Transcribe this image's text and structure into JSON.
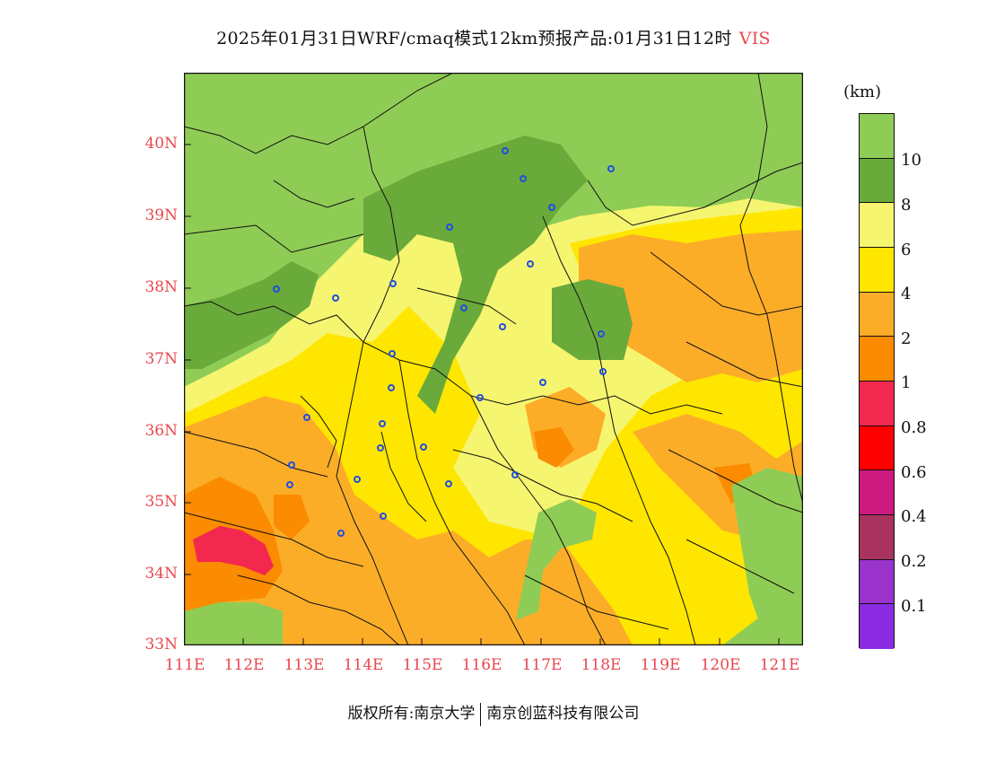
{
  "title": {
    "main": "2025年01月31日WRF/cmaq模式12km预报产品:01月31日12时",
    "variable": "VIS"
  },
  "map": {
    "lat_labels": [
      "40N",
      "39N",
      "38N",
      "37N",
      "36N",
      "35N",
      "34N",
      "33N"
    ],
    "lon_labels": [
      "111E",
      "112E",
      "113E",
      "114E",
      "115E",
      "116E",
      "117E",
      "118E",
      "119E",
      "120E",
      "121E"
    ],
    "colors": {
      "vis_gt10": "#8fcc55",
      "vis_8_10": "#6aaa3a",
      "vis_6_8": "#f5f570",
      "vis_4_6": "#ffe600",
      "vis_2_4": "#fcad28",
      "vis_1_2": "#fb8b00",
      "vis_0_8_1": "#f3284e"
    }
  },
  "legend": {
    "unit": "(km)",
    "colors": [
      "#8fcc55",
      "#6aaa3a",
      "#f5f570",
      "#ffe600",
      "#fcad28",
      "#fb8b00",
      "#f3284e",
      "#ff0000",
      "#cc1a7f",
      "#a8335e",
      "#9933cc",
      "#8a2be2"
    ],
    "labels": [
      "10",
      "8",
      "6",
      "4",
      "2",
      "1",
      "0.8",
      "0.6",
      "0.4",
      "0.2",
      "0.1"
    ]
  },
  "footer": {
    "left": "版权所有:南京大学",
    "right": "南京创蓝科技有限公司"
  }
}
